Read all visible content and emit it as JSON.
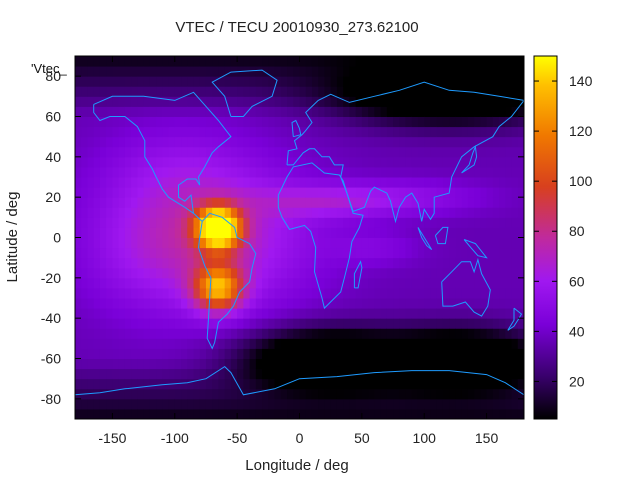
{
  "chart_data": {
    "type": "heatmap",
    "title": "VTEC / TECU 20010930_273.62100",
    "xlabel": "Longitude / deg",
    "ylabel": "Latitude / deg",
    "legend_key": "'Vtec_",
    "xlim": [
      -180,
      180
    ],
    "ylim": [
      -90,
      90
    ],
    "xticks": [
      -150,
      -100,
      -50,
      0,
      50,
      100,
      150
    ],
    "xtick_labels": [
      "-150",
      "-100",
      "-50",
      "0",
      "50",
      "100",
      "150"
    ],
    "yticks": [
      -80,
      -60,
      -40,
      -20,
      0,
      20,
      40,
      60,
      80
    ],
    "ytick_labels": [
      "-80",
      "-60",
      "-40",
      "-20",
      "0",
      "20",
      "40",
      "60",
      "80"
    ],
    "colorbar": {
      "range": [
        5,
        150
      ],
      "ticks": [
        20,
        40,
        60,
        80,
        100,
        120,
        140
      ],
      "tick_labels": [
        "20",
        "40",
        "60",
        "80",
        "100",
        "120",
        "140"
      ],
      "palette": [
        "#000000",
        "#3a006e",
        "#7a00d8",
        "#a018f0",
        "#c02a9c",
        "#d8401e",
        "#f07800",
        "#ffc000",
        "#ffff00"
      ]
    },
    "field": {
      "grid_step_deg": 5,
      "background_tecu": 35,
      "features": [
        {
          "lon": -65,
          "lat": 5,
          "peak_tecu": 148,
          "width_lon": 12,
          "width_lat": 7
        },
        {
          "lon": -65,
          "lat": -25,
          "peak_tecu": 110,
          "width_lon": 14,
          "width_lat": 8
        },
        {
          "lon": -75,
          "lat": 0,
          "peak_tecu": 75,
          "width_lon": 55,
          "width_lat": 25
        },
        {
          "lon": -100,
          "lat": 35,
          "peak_tecu": 45,
          "width_lon": 40,
          "width_lat": 15
        },
        {
          "lon": -135,
          "lat": -5,
          "peak_tecu": 40,
          "width_lon": 30,
          "width_lat": 20
        },
        {
          "lon": 20,
          "lat": 18,
          "peak_tecu": 55,
          "width_lon": 40,
          "width_lat": 6
        },
        {
          "lon": 85,
          "lat": 20,
          "peak_tecu": 50,
          "width_lon": 45,
          "width_lat": 6
        },
        {
          "lon": 60,
          "lat": -5,
          "peak_tecu": 45,
          "width_lon": 25,
          "width_lat": 6
        },
        {
          "lon": 20,
          "lat": -60,
          "peak_tecu": -25,
          "width_lon": 45,
          "width_lat": 10
        },
        {
          "lon": 130,
          "lat": -60,
          "peak_tecu": -25,
          "width_lon": 45,
          "width_lat": 10
        },
        {
          "lon": 120,
          "lat": 70,
          "peak_tecu": -15,
          "width_lon": 60,
          "width_lat": 10
        }
      ]
    },
    "coastlines": [
      {
        "name": "north-america",
        "points": [
          [
            -165,
            66
          ],
          [
            -150,
            70
          ],
          [
            -125,
            70
          ],
          [
            -100,
            68
          ],
          [
            -85,
            72
          ],
          [
            -75,
            65
          ],
          [
            -65,
            58
          ],
          [
            -55,
            50
          ],
          [
            -65,
            45
          ],
          [
            -70,
            42
          ],
          [
            -76,
            35
          ],
          [
            -81,
            30
          ],
          [
            -80,
            26
          ],
          [
            -83,
            29
          ],
          [
            -90,
            29
          ],
          [
            -97,
            26
          ],
          [
            -97,
            20
          ],
          [
            -92,
            18
          ],
          [
            -87,
            21
          ],
          [
            -85,
            12
          ],
          [
            -80,
            9
          ],
          [
            -78,
            8
          ],
          [
            -85,
            12
          ],
          [
            -92,
            15
          ],
          [
            -105,
            20
          ],
          [
            -110,
            24
          ],
          [
            -115,
            30
          ],
          [
            -118,
            34
          ],
          [
            -124,
            40
          ],
          [
            -124,
            48
          ],
          [
            -130,
            55
          ],
          [
            -140,
            60
          ],
          [
            -152,
            60
          ],
          [
            -160,
            58
          ],
          [
            -165,
            62
          ],
          [
            -165,
            66
          ]
        ]
      },
      {
        "name": "south-america",
        "points": [
          [
            -78,
            8
          ],
          [
            -72,
            12
          ],
          [
            -62,
            10
          ],
          [
            -52,
            5
          ],
          [
            -50,
            0
          ],
          [
            -40,
            -3
          ],
          [
            -35,
            -8
          ],
          [
            -38,
            -15
          ],
          [
            -40,
            -22
          ],
          [
            -48,
            -27
          ],
          [
            -53,
            -34
          ],
          [
            -58,
            -38
          ],
          [
            -65,
            -42
          ],
          [
            -68,
            -52
          ],
          [
            -70,
            -55
          ],
          [
            -74,
            -50
          ],
          [
            -73,
            -40
          ],
          [
            -72,
            -30
          ],
          [
            -71,
            -20
          ],
          [
            -76,
            -14
          ],
          [
            -81,
            -5
          ],
          [
            -80,
            0
          ],
          [
            -78,
            8
          ]
        ]
      },
      {
        "name": "greenland",
        "points": [
          [
            -55,
            60
          ],
          [
            -45,
            60
          ],
          [
            -38,
            65
          ],
          [
            -22,
            70
          ],
          [
            -18,
            78
          ],
          [
            -30,
            83
          ],
          [
            -55,
            82
          ],
          [
            -70,
            77
          ],
          [
            -60,
            70
          ],
          [
            -55,
            60
          ]
        ]
      },
      {
        "name": "africa",
        "points": [
          [
            -17,
            21
          ],
          [
            -10,
            30
          ],
          [
            -5,
            35
          ],
          [
            10,
            37
          ],
          [
            20,
            32
          ],
          [
            32,
            31
          ],
          [
            35,
            28
          ],
          [
            43,
            12
          ],
          [
            51,
            11
          ],
          [
            48,
            5
          ],
          [
            42,
            -2
          ],
          [
            40,
            -10
          ],
          [
            36,
            -20
          ],
          [
            33,
            -27
          ],
          [
            20,
            -35
          ],
          [
            18,
            -30
          ],
          [
            12,
            -17
          ],
          [
            13,
            -5
          ],
          [
            9,
            3
          ],
          [
            4,
            6
          ],
          [
            -8,
            4
          ],
          [
            -14,
            10
          ],
          [
            -17,
            15
          ],
          [
            -17,
            21
          ]
        ]
      },
      {
        "name": "eurasia",
        "points": [
          [
            -10,
            36
          ],
          [
            -9,
            43
          ],
          [
            -2,
            44
          ],
          [
            -4,
            48
          ],
          [
            2,
            51
          ],
          [
            5,
            53
          ],
          [
            10,
            57
          ],
          [
            5,
            62
          ],
          [
            15,
            68
          ],
          [
            25,
            71
          ],
          [
            40,
            67
          ],
          [
            60,
            70
          ],
          [
            80,
            73
          ],
          [
            100,
            77
          ],
          [
            120,
            73
          ],
          [
            140,
            72
          ],
          [
            160,
            70
          ],
          [
            180,
            68
          ],
          [
            170,
            60
          ],
          [
            160,
            55
          ],
          [
            155,
            50
          ],
          [
            140,
            45
          ],
          [
            130,
            40
          ],
          [
            122,
            30
          ],
          [
            120,
            22
          ],
          [
            108,
            20
          ],
          [
            108,
            12
          ],
          [
            105,
            9
          ],
          [
            100,
            14
          ],
          [
            98,
            8
          ],
          [
            95,
            17
          ],
          [
            90,
            22
          ],
          [
            85,
            20
          ],
          [
            80,
            15
          ],
          [
            77,
            8
          ],
          [
            73,
            18
          ],
          [
            70,
            22
          ],
          [
            60,
            25
          ],
          [
            57,
            23
          ],
          [
            52,
            15
          ],
          [
            43,
            13
          ],
          [
            38,
            22
          ],
          [
            33,
            30
          ],
          [
            35,
            36
          ],
          [
            28,
            36
          ],
          [
            24,
            40
          ],
          [
            18,
            40
          ],
          [
            12,
            44
          ],
          [
            8,
            44
          ],
          [
            3,
            42
          ],
          [
            -5,
            36
          ],
          [
            -10,
            36
          ]
        ]
      },
      {
        "name": "australia",
        "points": [
          [
            114,
            -22
          ],
          [
            122,
            -17
          ],
          [
            130,
            -12
          ],
          [
            137,
            -12
          ],
          [
            140,
            -17
          ],
          [
            143,
            -11
          ],
          [
            146,
            -18
          ],
          [
            153,
            -26
          ],
          [
            151,
            -34
          ],
          [
            146,
            -39
          ],
          [
            140,
            -37
          ],
          [
            133,
            -32
          ],
          [
            123,
            -34
          ],
          [
            115,
            -34
          ],
          [
            114,
            -22
          ]
        ]
      },
      {
        "name": "antarctica",
        "points": [
          [
            -180,
            -78
          ],
          [
            -160,
            -77
          ],
          [
            -140,
            -75
          ],
          [
            -110,
            -73
          ],
          [
            -90,
            -72
          ],
          [
            -75,
            -70
          ],
          [
            -60,
            -64
          ],
          [
            -55,
            -67
          ],
          [
            -45,
            -78
          ],
          [
            -20,
            -75
          ],
          [
            0,
            -70
          ],
          [
            30,
            -69
          ],
          [
            60,
            -67
          ],
          [
            90,
            -66
          ],
          [
            120,
            -66
          ],
          [
            150,
            -68
          ],
          [
            165,
            -72
          ],
          [
            180,
            -78
          ]
        ]
      },
      {
        "name": "madagascar",
        "points": [
          [
            44,
            -25
          ],
          [
            47,
            -25
          ],
          [
            50,
            -15
          ],
          [
            49,
            -12
          ],
          [
            44,
            -18
          ],
          [
            44,
            -25
          ]
        ]
      },
      {
        "name": "japan",
        "points": [
          [
            130,
            32
          ],
          [
            135,
            34
          ],
          [
            140,
            36
          ],
          [
            142,
            40
          ],
          [
            141,
            45
          ],
          [
            139,
            42
          ],
          [
            136,
            36
          ],
          [
            130,
            32
          ]
        ]
      },
      {
        "name": "new-zealand",
        "points": [
          [
            172,
            -35
          ],
          [
            178,
            -38
          ],
          [
            175,
            -41
          ],
          [
            172,
            -44
          ],
          [
            167,
            -46
          ],
          [
            172,
            -41
          ],
          [
            172,
            -35
          ]
        ]
      },
      {
        "name": "british-isles",
        "points": [
          [
            -5,
            50
          ],
          [
            1,
            51
          ],
          [
            0,
            54
          ],
          [
            -3,
            58
          ],
          [
            -6,
            57
          ],
          [
            -5,
            50
          ]
        ]
      },
      {
        "name": "borneo",
        "points": [
          [
            109,
            1
          ],
          [
            115,
            5
          ],
          [
            119,
            5
          ],
          [
            117,
            -3
          ],
          [
            111,
            -3
          ],
          [
            109,
            1
          ]
        ]
      },
      {
        "name": "sumatra",
        "points": [
          [
            95,
            5
          ],
          [
            100,
            0
          ],
          [
            106,
            -6
          ],
          [
            102,
            -4
          ],
          [
            98,
            0
          ],
          [
            95,
            5
          ]
        ]
      },
      {
        "name": "new-guinea",
        "points": [
          [
            132,
            -1
          ],
          [
            141,
            -3
          ],
          [
            150,
            -10
          ],
          [
            143,
            -9
          ],
          [
            136,
            -4
          ],
          [
            132,
            -1
          ]
        ]
      }
    ]
  }
}
